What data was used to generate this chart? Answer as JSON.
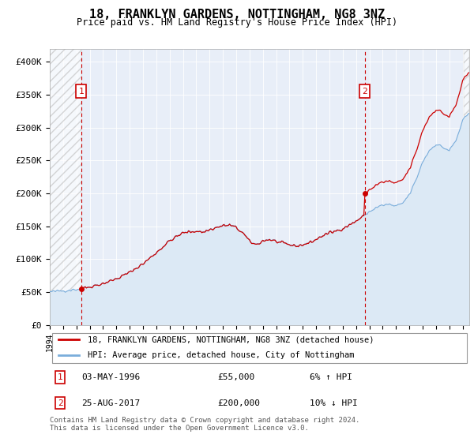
{
  "title": "18, FRANKLYN GARDENS, NOTTINGHAM, NG8 3NZ",
  "subtitle": "Price paid vs. HM Land Registry's House Price Index (HPI)",
  "ylim": [
    0,
    420000
  ],
  "yticks": [
    0,
    50000,
    100000,
    150000,
    200000,
    250000,
    300000,
    350000,
    400000
  ],
  "ytick_labels": [
    "£0",
    "£50K",
    "£100K",
    "£150K",
    "£200K",
    "£250K",
    "£300K",
    "£350K",
    "£400K"
  ],
  "xlim_start": 1994.0,
  "xlim_end": 2025.5,
  "sale1_year": 1996.35,
  "sale1_price": 55000,
  "sale2_year": 2017.65,
  "sale2_price": 200000,
  "line_color_price": "#cc0000",
  "line_color_hpi": "#7aaddb",
  "fill_color_hpi": "#dce9f5",
  "background_plot": "#e8eef8",
  "legend_line1": "18, FRANKLYN GARDENS, NOTTINGHAM, NG8 3NZ (detached house)",
  "legend_line2": "HPI: Average price, detached house, City of Nottingham",
  "footer": "Contains HM Land Registry data © Crown copyright and database right 2024.\nThis data is licensed under the Open Government Licence v3.0."
}
